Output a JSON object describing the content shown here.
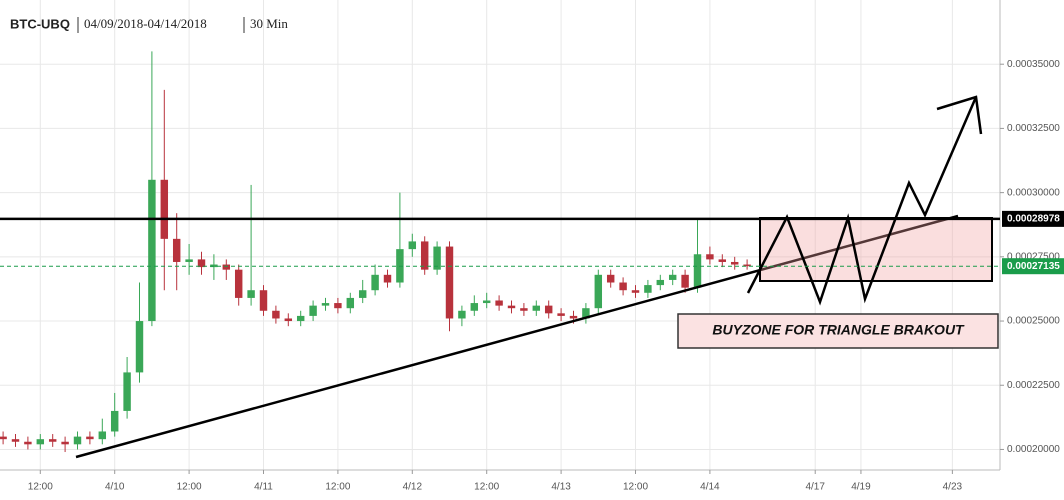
{
  "chart_data": {
    "type": "candlestick",
    "title": "BTC-UBQ",
    "date_range": "04/09/2018-04/14/2018",
    "interval": "30 Min",
    "x": [
      6,
      8,
      10,
      12,
      14,
      16,
      18,
      20,
      22,
      24,
      26,
      28,
      30,
      32,
      34,
      36,
      38,
      40,
      42,
      44,
      46,
      48,
      50,
      52,
      54,
      56,
      58,
      60,
      62,
      64,
      66,
      68,
      70,
      72,
      74,
      76,
      78,
      80,
      82,
      84,
      86,
      88,
      90,
      92,
      94,
      96,
      98,
      100,
      102,
      104,
      106,
      108,
      110,
      112,
      114,
      116,
      118,
      120,
      122,
      124,
      126
    ],
    "open": [
      0.000205,
      0.000204,
      0.000203,
      0.000202,
      0.000204,
      0.000203,
      0.000202,
      0.000205,
      0.000204,
      0.000207,
      0.000215,
      0.00023,
      0.00025,
      0.000305,
      0.000282,
      0.000273,
      0.000274,
      0.000271,
      0.000272,
      0.00027,
      0.000259,
      0.000262,
      0.000254,
      0.000251,
      0.00025,
      0.000252,
      0.000256,
      0.000257,
      0.000255,
      0.000259,
      0.000262,
      0.000268,
      0.000265,
      0.000278,
      0.000281,
      0.00027,
      0.000279,
      0.000251,
      0.000254,
      0.000257,
      0.000258,
      0.000256,
      0.000255,
      0.000254,
      0.000256,
      0.000253,
      0.000252,
      0.000251,
      0.000255,
      0.000268,
      0.000265,
      0.000262,
      0.000261,
      0.000264,
      0.000266,
      0.000268,
      0.000263,
      0.000276,
      0.000274,
      0.000273,
      0.000272
    ],
    "high": [
      0.000207,
      0.000206,
      0.000205,
      0.000206,
      0.000206,
      0.000205,
      0.000207,
      0.000207,
      0.000212,
      0.000222,
      0.000236,
      0.000265,
      0.000355,
      0.00034,
      0.000292,
      0.00028,
      0.000277,
      0.000276,
      0.000274,
      0.000272,
      0.000303,
      0.000264,
      0.000256,
      0.000253,
      0.000254,
      0.000258,
      0.000259,
      0.000259,
      0.000261,
      0.000266,
      0.000272,
      0.00027,
      0.0003,
      0.000284,
      0.000283,
      0.000281,
      0.000281,
      0.000256,
      0.00026,
      0.000261,
      0.00026,
      0.000258,
      0.000257,
      0.000258,
      0.000258,
      0.000255,
      0.000254,
      0.000257,
      0.00027,
      0.00027,
      0.000267,
      0.000264,
      0.000266,
      0.000268,
      0.00027,
      0.00027,
      0.00029,
      0.000279,
      0.000276,
      0.000275,
      0.000274
    ],
    "low": [
      0.000202,
      0.000201,
      0.0002,
      0.0002,
      0.000201,
      0.000199,
      0.0002,
      0.000202,
      0.000202,
      0.000205,
      0.000212,
      0.000226,
      0.000248,
      0.000262,
      0.000262,
      0.000268,
      0.000268,
      0.000266,
      0.000266,
      0.000256,
      0.000256,
      0.000252,
      0.000249,
      0.000248,
      0.000248,
      0.00025,
      0.000254,
      0.000253,
      0.000253,
      0.000257,
      0.00026,
      0.000263,
      0.000263,
      0.000275,
      0.000268,
      0.000268,
      0.000246,
      0.000248,
      0.000252,
      0.000255,
      0.000254,
      0.000253,
      0.000252,
      0.000252,
      0.000251,
      0.00025,
      0.000249,
      0.000249,
      0.000253,
      0.000263,
      0.00026,
      0.000259,
      0.000259,
      0.000262,
      0.000264,
      0.000261,
      0.000261,
      0.000272,
      0.000271,
      0.00027,
      0.00027
    ],
    "close": [
      0.000204,
      0.000203,
      0.000202,
      0.000204,
      0.000203,
      0.000202,
      0.000205,
      0.000204,
      0.000207,
      0.000215,
      0.00023,
      0.00025,
      0.000305,
      0.000282,
      0.000273,
      0.000274,
      0.000271,
      0.000272,
      0.00027,
      0.000259,
      0.000262,
      0.000254,
      0.000251,
      0.00025,
      0.000252,
      0.000256,
      0.000257,
      0.000255,
      0.000259,
      0.000262,
      0.000268,
      0.000265,
      0.000278,
      0.000281,
      0.00027,
      0.000279,
      0.000251,
      0.000254,
      0.000257,
      0.000258,
      0.000256,
      0.000255,
      0.000254,
      0.000256,
      0.000253,
      0.000252,
      0.000251,
      0.000255,
      0.000268,
      0.000265,
      0.000262,
      0.000261,
      0.000264,
      0.000266,
      0.000268,
      0.000263,
      0.000276,
      0.000274,
      0.000273,
      0.000272,
      0.00027135
    ],
    "up_color": "#3aa757",
    "down_color": "#b8323c",
    "xlim": [
      5.5,
      386
    ],
    "xticks": [
      {
        "value": 12,
        "label": "12:00"
      },
      {
        "value": 24,
        "label": "4/10"
      },
      {
        "value": 36,
        "label": "12:00"
      },
      {
        "value": 48,
        "label": "4/11"
      },
      {
        "value": 60,
        "label": "12:00"
      },
      {
        "value": 72,
        "label": "4/12"
      },
      {
        "value": 84,
        "label": "12:00"
      },
      {
        "value": 96,
        "label": "4/13"
      },
      {
        "value": 108,
        "label": "12:00"
      },
      {
        "value": 120,
        "label": "4/14"
      },
      {
        "value": 192,
        "label": "4/17"
      },
      {
        "value": 240,
        "label": "4/19"
      },
      {
        "value": 336,
        "label": "4/23"
      }
    ],
    "ylim": [
      0.000192,
      0.000375
    ],
    "yticks": [
      {
        "value": 0.0002,
        "label": "0.00020000"
      },
      {
        "value": 0.000225,
        "label": "0.00022500"
      },
      {
        "value": 0.00025,
        "label": "0.00025000"
      },
      {
        "value": 0.000275,
        "label": "0.00027500"
      },
      {
        "value": 0.0003,
        "label": "0.00030000"
      },
      {
        "value": 0.000325,
        "label": "0.00032500"
      },
      {
        "value": 0.00035,
        "label": "0.00035000"
      }
    ],
    "grid": true,
    "price_lines": [
      {
        "value": 0.00028978,
        "color": "#000000",
        "style": "solid"
      },
      {
        "value": 0.00027135,
        "color": "#1a9c4a",
        "style": "dashed"
      }
    ],
    "annotation": "BUYZONE FOR TRIANGLE BRAKOUT"
  }
}
